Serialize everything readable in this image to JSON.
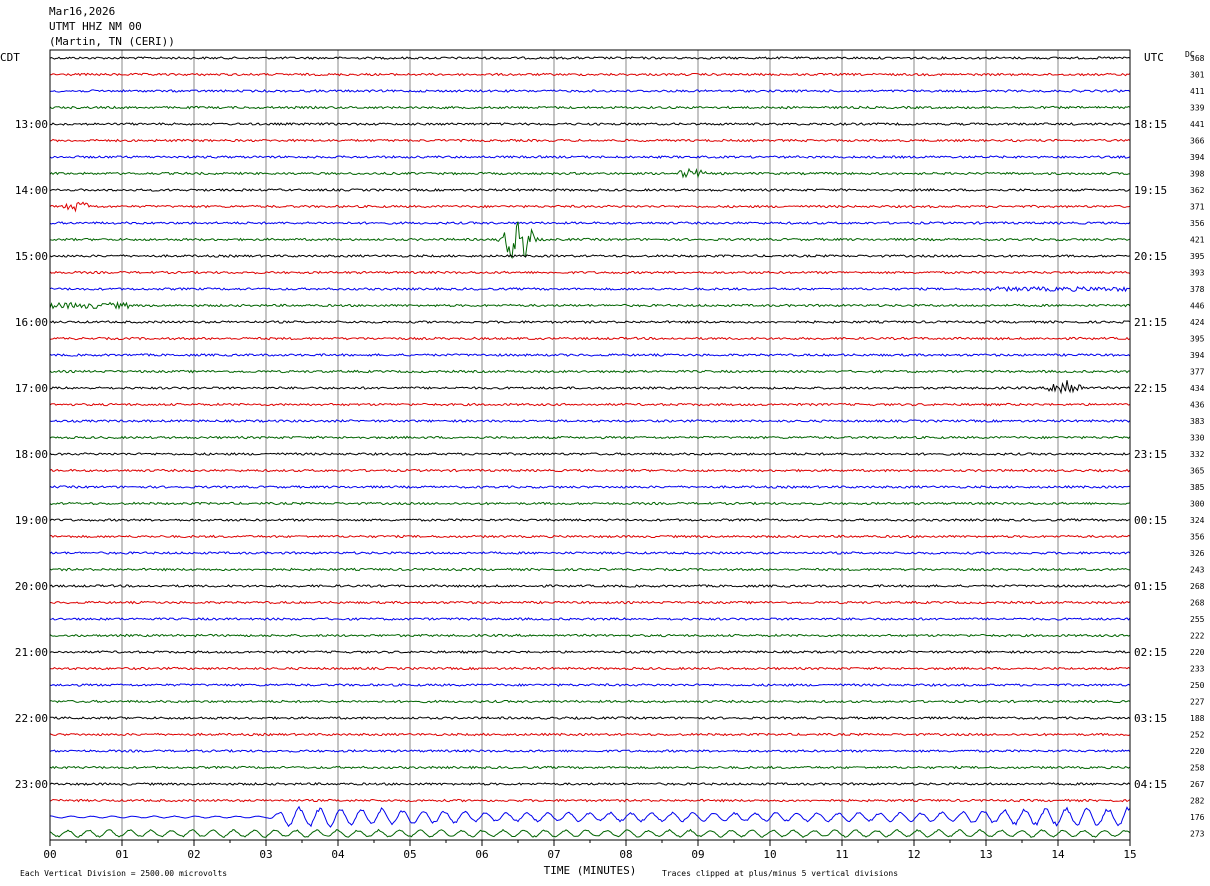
{
  "header": {
    "date": "Mar16,2026",
    "station": "UTMT HHZ NM 00",
    "location": "(Martin, TN (CERI))"
  },
  "left_zone": "CDT",
  "right_zone": "UTC",
  "dc_label": "DC",
  "footer": {
    "vertical_division": "Each Vertical Division = 2500.00 microvolts",
    "xlabel": "TIME (MINUTES)",
    "clip_note": "Traces clipped at plus/minus 5 vertical divisions"
  },
  "colors": {
    "black": "#000000",
    "red": "#dd0000",
    "blue": "#0000ee",
    "green": "#006400",
    "grid": "#888888"
  },
  "chart_data": {
    "type": "line",
    "description": "helicorder",
    "xlabel": "TIME (MINUTES)",
    "xlim": [
      0,
      15
    ],
    "x_tick_labels": [
      "00",
      "01",
      "02",
      "03",
      "04",
      "05",
      "06",
      "07",
      "08",
      "09",
      "10",
      "11",
      "12",
      "13",
      "14",
      "15"
    ],
    "left_hour_labels": [
      "13:00",
      "14:00",
      "15:00",
      "16:00",
      "17:00",
      "18:00",
      "19:00",
      "20:00",
      "21:00",
      "22:00",
      "23:00"
    ],
    "right_hour_labels": [
      "18:15",
      "19:15",
      "20:15",
      "21:15",
      "22:15",
      "23:15",
      "00:15",
      "01:15",
      "02:15",
      "03:15",
      "04:15"
    ],
    "trace_color_cycle": [
      "black",
      "red",
      "blue",
      "green"
    ],
    "dc_offsets": [
      368,
      301,
      411,
      339,
      441,
      366,
      394,
      398,
      362,
      371,
      356,
      421,
      395,
      393,
      378,
      446,
      424,
      395,
      394,
      377,
      434,
      436,
      383,
      330,
      332,
      365,
      385,
      300,
      324,
      356,
      326,
      243,
      268,
      268,
      255,
      222,
      220,
      233,
      250,
      227,
      188,
      252,
      220,
      258,
      267,
      282,
      176,
      273
    ],
    "events": [
      {
        "trace": 9,
        "minute": 0.4,
        "amplitude": "small"
      },
      {
        "trace": 11,
        "minute": 6.5,
        "amplitude": "large"
      },
      {
        "trace": 7,
        "minute": 8.9,
        "amplitude": "small"
      },
      {
        "trace": 20,
        "minute": 14.1,
        "amplitude": "medium"
      },
      {
        "trace": 46,
        "minute": 3.3,
        "amplitude": "noisy"
      }
    ]
  }
}
